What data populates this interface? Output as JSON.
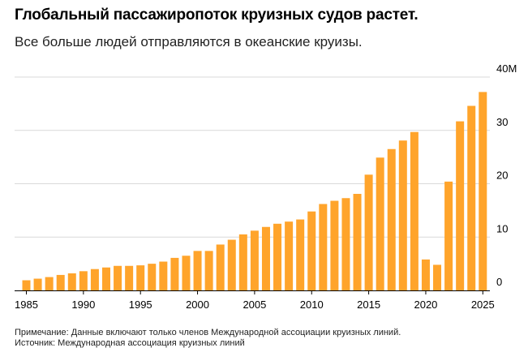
{
  "header": {
    "title": "Глобальный пассажиропоток круизных судов растет.",
    "subtitle": "Все больше людей отправляются в океанские круизы."
  },
  "footer": {
    "note": "Примечание: Данные включают только членов Международной ассоциации круизных линий.",
    "source": "Источник: Международная ассоциация круизных линий"
  },
  "colors": {
    "bar": "#FFA42B",
    "grid": "#D9D9D9",
    "axis": "#000000"
  },
  "chart_data": {
    "type": "bar",
    "ylim": [
      0,
      40
    ],
    "yticks": [
      0,
      10,
      20,
      30,
      40
    ],
    "ytick_labels": [
      "0",
      "10",
      "20",
      "30",
      "40M"
    ],
    "y_axis_position": "right",
    "grid": true,
    "xtick_labels": [
      "1985",
      "1990",
      "1995",
      "2000",
      "2005",
      "2010",
      "2015",
      "2020",
      "2025"
    ],
    "xtick_values": [
      1985,
      1990,
      1995,
      2000,
      2005,
      2010,
      2015,
      2020,
      2025
    ],
    "x": [
      1985,
      1986,
      1987,
      1988,
      1989,
      1990,
      1991,
      1992,
      1993,
      1994,
      1995,
      1996,
      1997,
      1998,
      1999,
      2000,
      2001,
      2002,
      2003,
      2004,
      2005,
      2006,
      2007,
      2008,
      2009,
      2010,
      2011,
      2012,
      2013,
      2014,
      2015,
      2016,
      2017,
      2018,
      2019,
      2020,
      2021,
      2022,
      2023,
      2024,
      2025
    ],
    "values": [
      1.9,
      2.2,
      2.5,
      2.9,
      3.2,
      3.6,
      4.0,
      4.3,
      4.6,
      4.6,
      4.7,
      5.0,
      5.4,
      6.1,
      6.5,
      7.4,
      7.4,
      8.6,
      9.5,
      10.5,
      11.2,
      11.9,
      12.5,
      12.9,
      13.3,
      14.8,
      16.2,
      16.8,
      17.3,
      18.1,
      21.7,
      24.9,
      26.5,
      28.1,
      29.7,
      5.8,
      4.8,
      20.4,
      31.7,
      34.6,
      37.2
    ]
  }
}
